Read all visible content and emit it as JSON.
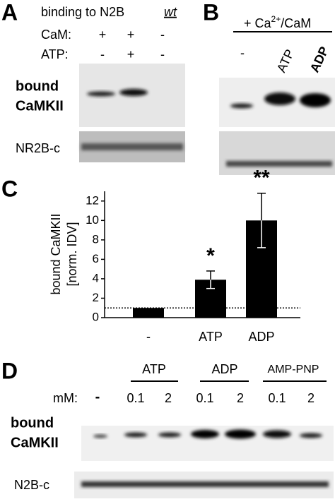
{
  "panel_a": {
    "letter": "A",
    "title": "binding to N2B",
    "title_italic": "wt",
    "rows": [
      {
        "label": "CaM:",
        "lanes": [
          "+",
          "+",
          "-"
        ]
      },
      {
        "label": "ATP:",
        "lanes": [
          "-",
          "+",
          "-"
        ]
      }
    ],
    "blot_labels": [
      "bound",
      "CaMKII",
      "NR2B-c"
    ]
  },
  "panel_b": {
    "letter": "B",
    "header": [
      "+ Ca",
      "2+",
      "/CaM"
    ],
    "lanes": [
      "-",
      "ATP",
      "ADP"
    ]
  },
  "chart_data": {
    "type": "bar",
    "letter": "C",
    "y_label": [
      "bound CaMKII",
      "[norm. IDV]"
    ],
    "categories": [
      "-",
      "ATP",
      "ADP"
    ],
    "values": [
      1,
      3.9,
      10
    ],
    "errors": [
      null,
      0.9,
      2.8
    ],
    "annotations": [
      null,
      "*",
      "**"
    ],
    "color": "#000000",
    "ylim": [
      0,
      13
    ],
    "yticks": [
      0,
      2,
      4,
      6,
      8,
      10,
      12
    ],
    "reference_line": 1
  },
  "panel_d": {
    "letter": "D",
    "groups": [
      "ATP",
      "ADP",
      "AMP-PNP"
    ],
    "mm_label": "mM:",
    "lanes": [
      "-",
      "0.1",
      "2",
      "0.1",
      "2",
      "0.1",
      "2"
    ],
    "blot_labels": [
      "bound",
      "CaMKII",
      "N2B-c"
    ]
  }
}
